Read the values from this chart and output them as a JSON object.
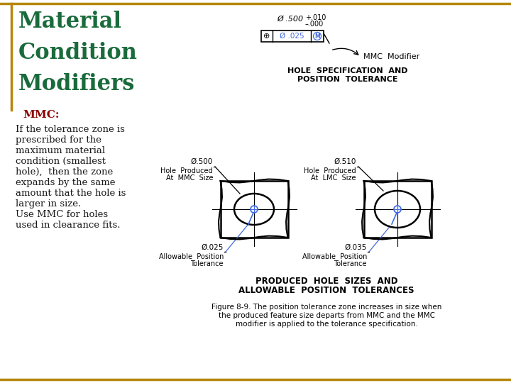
{
  "title_lines": [
    "Material",
    "Condition",
    "Modifiers"
  ],
  "title_color": "#1a6b3c",
  "title_fontsize": 22,
  "mmc_label": "MMC:",
  "mmc_color": "#8b0000",
  "mmc_fontsize": 11,
  "body_text_lines": [
    "If the tolerance zone is",
    "prescribed for the",
    "maximum material",
    "condition (smallest",
    "hole),  then the zone",
    "expands by the same",
    "amount that the hole is",
    "larger in size.",
    "Use MMC for holes",
    "used in clearance fits."
  ],
  "body_color": "#1a1a1a",
  "body_fontsize": 9.5,
  "border_color": "#b8860b",
  "bg_color": "#ffffff",
  "diagram_text_color": "#000000",
  "blue_color": "#4169e1",
  "mmc_modifier_label": "MMC  Modifier",
  "figure_caption_lines": [
    "Figure 8-9. The position tolerance zone increases in size when",
    "the produced feature size departs from MMC and the MMC",
    "modifier is applied to the tolerance specification."
  ]
}
